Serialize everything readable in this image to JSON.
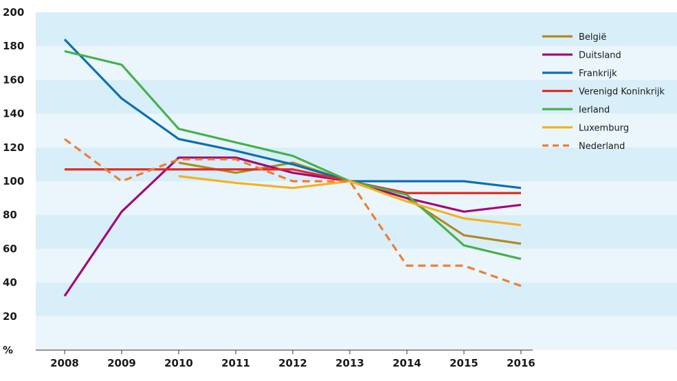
{
  "chart_data": {
    "type": "line",
    "title": "",
    "xlabel": "",
    "ylabel": "%",
    "x": [
      "2008",
      "2009",
      "2010",
      "2011",
      "2012",
      "2013",
      "2014",
      "2015",
      "2016"
    ],
    "ylim": [
      0,
      200
    ],
    "yticks": [
      0,
      20,
      40,
      60,
      80,
      100,
      120,
      140,
      160,
      180,
      200
    ],
    "grid": "alternating horizontal bands",
    "legend_position": "top-right",
    "series": [
      {
        "name": "België",
        "color": "#b08a1e",
        "dashed": false,
        "values": [
          null,
          null,
          111,
          105,
          111,
          100,
          90,
          68,
          63
        ]
      },
      {
        "name": "Duitsland",
        "color": "#a3067a",
        "dashed": false,
        "values": [
          32,
          82,
          114,
          114,
          105,
          100,
          90,
          82,
          86
        ]
      },
      {
        "name": "Frankrijk",
        "color": "#0b6fb0",
        "dashed": false,
        "values": [
          184,
          149,
          125,
          118,
          110,
          100,
          100,
          100,
          96
        ]
      },
      {
        "name": "Verenigd Koninkrijk",
        "color": "#e42a22",
        "dashed": false,
        "values": [
          107,
          107,
          107,
          107,
          107,
          100,
          93,
          93,
          93
        ]
      },
      {
        "name": "Ierland",
        "color": "#45b14a",
        "dashed": false,
        "values": [
          177,
          169,
          131,
          123,
          115,
          100,
          92,
          62,
          54
        ]
      },
      {
        "name": "Luxemburg",
        "color": "#f7b01e",
        "dashed": false,
        "values": [
          null,
          null,
          103,
          99,
          96,
          100,
          88,
          78,
          74
        ]
      },
      {
        "name": "Nederland",
        "color": "#f07d2d",
        "dashed": true,
        "values": [
          125,
          100,
          113,
          113,
          100,
          100,
          50,
          50,
          38
        ]
      }
    ]
  }
}
